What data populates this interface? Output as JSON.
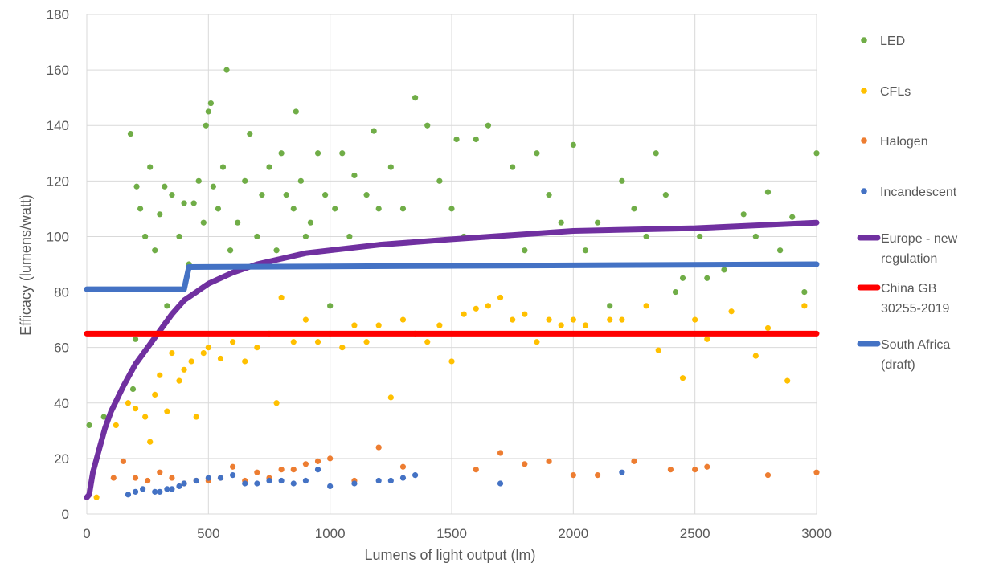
{
  "chart_data": {
    "type": "scatter",
    "title": "",
    "xlabel": "Lumens of light output (lm)",
    "ylabel": "Efficacy (lumens/watt)",
    "xlim": [
      0,
      3000
    ],
    "ylim": [
      0,
      180
    ],
    "x_ticks": [
      "0",
      "500",
      "1000",
      "1500",
      "2000",
      "2500",
      "3000"
    ],
    "y_ticks": [
      "0",
      "20",
      "40",
      "60",
      "80",
      "100",
      "120",
      "140",
      "160",
      "180"
    ],
    "grid": "vertical and horizontal",
    "legend_position": "right",
    "series": [
      {
        "name": "LED",
        "kind": "scatter",
        "color": "#70AD47",
        "points": [
          [
            10,
            32
          ],
          [
            70,
            35
          ],
          [
            180,
            137
          ],
          [
            190,
            45
          ],
          [
            200,
            63
          ],
          [
            205,
            118
          ],
          [
            220,
            110
          ],
          [
            240,
            100
          ],
          [
            260,
            125
          ],
          [
            280,
            95
          ],
          [
            300,
            108
          ],
          [
            320,
            118
          ],
          [
            330,
            75
          ],
          [
            350,
            115
          ],
          [
            380,
            100
          ],
          [
            400,
            112
          ],
          [
            420,
            90
          ],
          [
            440,
            112
          ],
          [
            460,
            120
          ],
          [
            480,
            105
          ],
          [
            490,
            140
          ],
          [
            500,
            145
          ],
          [
            510,
            148
          ],
          [
            520,
            118
          ],
          [
            540,
            110
          ],
          [
            560,
            125
          ],
          [
            575,
            160
          ],
          [
            590,
            95
          ],
          [
            620,
            105
          ],
          [
            650,
            120
          ],
          [
            670,
            137
          ],
          [
            700,
            100
          ],
          [
            720,
            115
          ],
          [
            750,
            125
          ],
          [
            780,
            95
          ],
          [
            800,
            130
          ],
          [
            820,
            115
          ],
          [
            850,
            110
          ],
          [
            860,
            145
          ],
          [
            880,
            120
          ],
          [
            900,
            100
          ],
          [
            920,
            105
          ],
          [
            950,
            130
          ],
          [
            980,
            115
          ],
          [
            1000,
            75
          ],
          [
            1020,
            110
          ],
          [
            1050,
            130
          ],
          [
            1080,
            100
          ],
          [
            1100,
            122
          ],
          [
            1150,
            115
          ],
          [
            1180,
            138
          ],
          [
            1200,
            110
          ],
          [
            1250,
            125
          ],
          [
            1300,
            110
          ],
          [
            1350,
            150
          ],
          [
            1400,
            140
          ],
          [
            1450,
            120
          ],
          [
            1500,
            110
          ],
          [
            1520,
            135
          ],
          [
            1550,
            100
          ],
          [
            1600,
            135
          ],
          [
            1650,
            140
          ],
          [
            1700,
            100
          ],
          [
            1750,
            125
          ],
          [
            1800,
            95
          ],
          [
            1850,
            130
          ],
          [
            1900,
            115
          ],
          [
            1950,
            105
          ],
          [
            2000,
            133
          ],
          [
            2050,
            95
          ],
          [
            2100,
            105
          ],
          [
            2150,
            75
          ],
          [
            2200,
            120
          ],
          [
            2250,
            110
          ],
          [
            2300,
            100
          ],
          [
            2340,
            130
          ],
          [
            2380,
            115
          ],
          [
            2420,
            80
          ],
          [
            2450,
            85
          ],
          [
            2520,
            100
          ],
          [
            2550,
            85
          ],
          [
            2620,
            88
          ],
          [
            2700,
            108
          ],
          [
            2750,
            100
          ],
          [
            2800,
            116
          ],
          [
            2850,
            95
          ],
          [
            2900,
            107
          ],
          [
            2950,
            80
          ],
          [
            3000,
            130
          ]
        ]
      },
      {
        "name": "CFLs",
        "kind": "scatter",
        "color": "#FFC000",
        "points": [
          [
            40,
            6
          ],
          [
            120,
            32
          ],
          [
            170,
            40
          ],
          [
            200,
            38
          ],
          [
            240,
            35
          ],
          [
            260,
            26
          ],
          [
            280,
            43
          ],
          [
            300,
            50
          ],
          [
            330,
            37
          ],
          [
            350,
            58
          ],
          [
            380,
            48
          ],
          [
            400,
            52
          ],
          [
            430,
            55
          ],
          [
            450,
            35
          ],
          [
            480,
            58
          ],
          [
            500,
            60
          ],
          [
            550,
            56
          ],
          [
            600,
            62
          ],
          [
            650,
            55
          ],
          [
            700,
            60
          ],
          [
            750,
            65
          ],
          [
            780,
            40
          ],
          [
            800,
            78
          ],
          [
            850,
            62
          ],
          [
            900,
            70
          ],
          [
            950,
            62
          ],
          [
            1000,
            65
          ],
          [
            1050,
            60
          ],
          [
            1100,
            68
          ],
          [
            1150,
            62
          ],
          [
            1200,
            68
          ],
          [
            1250,
            42
          ],
          [
            1300,
            70
          ],
          [
            1350,
            65
          ],
          [
            1400,
            62
          ],
          [
            1450,
            68
          ],
          [
            1500,
            55
          ],
          [
            1550,
            72
          ],
          [
            1600,
            74
          ],
          [
            1650,
            75
          ],
          [
            1700,
            78
          ],
          [
            1750,
            70
          ],
          [
            1800,
            72
          ],
          [
            1850,
            62
          ],
          [
            1900,
            70
          ],
          [
            1950,
            68
          ],
          [
            2000,
            70
          ],
          [
            2050,
            68
          ],
          [
            2150,
            70
          ],
          [
            2200,
            70
          ],
          [
            2300,
            75
          ],
          [
            2350,
            59
          ],
          [
            2450,
            49
          ],
          [
            2500,
            70
          ],
          [
            2550,
            63
          ],
          [
            2650,
            73
          ],
          [
            2750,
            57
          ],
          [
            2800,
            67
          ],
          [
            2880,
            48
          ],
          [
            2950,
            75
          ]
        ]
      },
      {
        "name": "Halogen",
        "kind": "scatter",
        "color": "#ED7D31",
        "points": [
          [
            110,
            13
          ],
          [
            150,
            19
          ],
          [
            200,
            13
          ],
          [
            250,
            12
          ],
          [
            300,
            15
          ],
          [
            350,
            13
          ],
          [
            400,
            11
          ],
          [
            450,
            12
          ],
          [
            500,
            12
          ],
          [
            550,
            13
          ],
          [
            600,
            17
          ],
          [
            650,
            12
          ],
          [
            700,
            15
          ],
          [
            750,
            13
          ],
          [
            800,
            16
          ],
          [
            850,
            16
          ],
          [
            900,
            18
          ],
          [
            950,
            19
          ],
          [
            1000,
            20
          ],
          [
            1100,
            12
          ],
          [
            1200,
            24
          ],
          [
            1300,
            17
          ],
          [
            1600,
            16
          ],
          [
            1700,
            22
          ],
          [
            1800,
            18
          ],
          [
            1900,
            19
          ],
          [
            2000,
            14
          ],
          [
            2100,
            14
          ],
          [
            2250,
            19
          ],
          [
            2400,
            16
          ],
          [
            2500,
            16
          ],
          [
            2550,
            17
          ],
          [
            2800,
            14
          ],
          [
            3000,
            15
          ]
        ]
      },
      {
        "name": "Incandescent",
        "kind": "scatter",
        "color": "#4472C4",
        "points": [
          [
            170,
            7
          ],
          [
            200,
            8
          ],
          [
            230,
            9
          ],
          [
            280,
            8
          ],
          [
            300,
            8
          ],
          [
            330,
            9
          ],
          [
            350,
            9
          ],
          [
            380,
            10
          ],
          [
            400,
            11
          ],
          [
            450,
            12
          ],
          [
            500,
            13
          ],
          [
            550,
            13
          ],
          [
            600,
            14
          ],
          [
            650,
            11
          ],
          [
            700,
            11
          ],
          [
            750,
            12
          ],
          [
            800,
            12
          ],
          [
            850,
            11
          ],
          [
            900,
            12
          ],
          [
            950,
            16
          ],
          [
            1000,
            10
          ],
          [
            1100,
            11
          ],
          [
            1200,
            12
          ],
          [
            1250,
            12
          ],
          [
            1300,
            13
          ],
          [
            1350,
            14
          ],
          [
            1700,
            11
          ],
          [
            2200,
            15
          ]
        ]
      },
      {
        "name": "Europe - new regulation",
        "kind": "line",
        "color": "#7030A0",
        "points": [
          [
            0,
            6
          ],
          [
            10,
            7
          ],
          [
            25,
            15
          ],
          [
            50,
            23
          ],
          [
            75,
            31
          ],
          [
            100,
            37
          ],
          [
            150,
            46
          ],
          [
            200,
            54
          ],
          [
            250,
            60
          ],
          [
            300,
            66
          ],
          [
            350,
            72
          ],
          [
            400,
            77
          ],
          [
            450,
            80
          ],
          [
            500,
            83
          ],
          [
            600,
            87
          ],
          [
            700,
            90
          ],
          [
            800,
            92
          ],
          [
            900,
            94
          ],
          [
            1000,
            95
          ],
          [
            1200,
            97
          ],
          [
            1500,
            99
          ],
          [
            2000,
            102
          ],
          [
            2500,
            103
          ],
          [
            3000,
            105
          ]
        ]
      },
      {
        "name": "China GB 30255-2019",
        "kind": "line",
        "color": "#FF0000",
        "points": [
          [
            0,
            65
          ],
          [
            3000,
            65
          ]
        ]
      },
      {
        "name": "South Africa (draft)",
        "kind": "line",
        "color": "#4472C4",
        "points": [
          [
            0,
            81
          ],
          [
            400,
            81
          ],
          [
            420,
            89
          ],
          [
            3000,
            90
          ]
        ]
      }
    ],
    "legend": [
      {
        "label_lines": [
          "LED"
        ],
        "color": "#70AD47",
        "marker": "dot"
      },
      {
        "label_lines": [
          "CFLs"
        ],
        "color": "#FFC000",
        "marker": "dot"
      },
      {
        "label_lines": [
          "Halogen"
        ],
        "color": "#ED7D31",
        "marker": "dot"
      },
      {
        "label_lines": [
          "Incandescent"
        ],
        "color": "#4472C4",
        "marker": "dot"
      },
      {
        "label_lines": [
          "Europe - new",
          "regulation"
        ],
        "color": "#7030A0",
        "marker": "line"
      },
      {
        "label_lines": [
          "China GB",
          "30255-2019"
        ],
        "color": "#FF0000",
        "marker": "line"
      },
      {
        "label_lines": [
          "South Africa",
          "(draft)"
        ],
        "color": "#4472C4",
        "marker": "line"
      }
    ]
  }
}
